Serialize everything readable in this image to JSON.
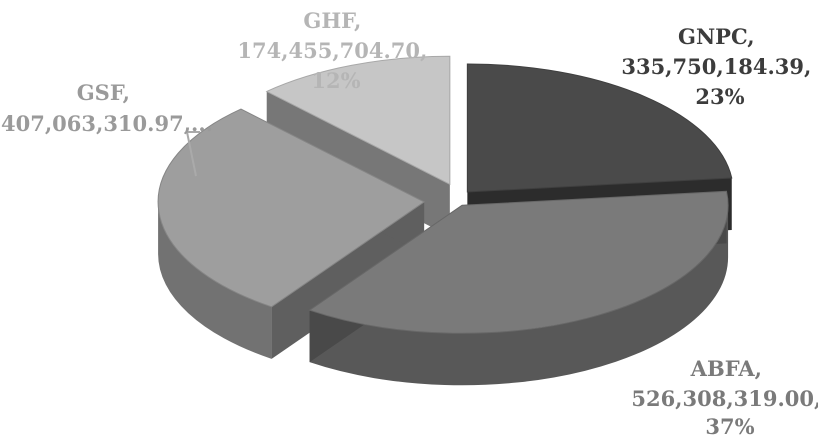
{
  "chart_data": {
    "type": "pie",
    "title": "",
    "slices": [
      {
        "name": "GNPC",
        "value_text": "335,750,184.39",
        "value": 335750184.39,
        "percent_text": "23%",
        "percent": 23,
        "color": "#4a4a4a"
      },
      {
        "name": "ABFA",
        "value_text": "526,308,319.00",
        "value": 526308319.0,
        "percent_text": "37%",
        "percent": 37,
        "color": "#7a7a7a"
      },
      {
        "name": "GSF",
        "value_text": "407,063,310.97",
        "value": 407063310.97,
        "percent_text": "…",
        "percent": 28,
        "color": "#9e9e9e"
      },
      {
        "name": "GHF",
        "value_text": "174,455,704.70",
        "value": 174455704.7,
        "percent_text": "12%",
        "percent": 12,
        "color": "#c6c6c6"
      }
    ],
    "legend": "none",
    "style": "3d-exploded"
  },
  "labels": {
    "gnpc": [
      "GNPC,",
      "335,750,184.39,",
      "23%"
    ],
    "abfa": [
      "ABFA,",
      "526,308,319.00,",
      "37%"
    ],
    "gsf": [
      "GSF,",
      "407,063,310.97,..."
    ],
    "ghf": [
      "GHF,",
      "174,455,704.70,",
      "12%"
    ]
  },
  "label_colors": {
    "gnpc": "#3c3c3c",
    "abfa": "#7a7a7a",
    "gsf": "#9a9a9a",
    "ghf": "#b5b5b5"
  }
}
